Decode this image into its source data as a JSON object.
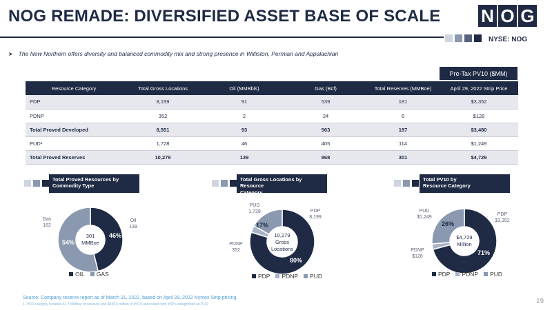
{
  "header": {
    "title": "NOG REMADE: DIVERSIFIED ASSET BASE OF SCALE",
    "logo_letters": [
      "N",
      "O",
      "G"
    ],
    "ticker": "NYSE: NOG"
  },
  "bullet": "The New Northern offers diversity and balanced commodity mix and strong presence in Williston, Permian and Appalachian",
  "pv_header": "Pre-Tax PV10 ($MM)",
  "table": {
    "headers": [
      "Resource Category",
      "Total Gross Locations",
      "Oil (MMBbls)",
      "Gas (Bcf)",
      "Total Reserves (MMBoe)",
      "April 29, 2022 Strip Price"
    ],
    "rows": [
      [
        "PDP",
        "8,199",
        "91",
        "539",
        "181",
        "$3,352"
      ],
      [
        "PDNP",
        "352",
        "2",
        "24",
        "6",
        "$128"
      ],
      [
        "Total Proved Developed",
        "8,551",
        "93",
        "563",
        "187",
        "$3,480"
      ],
      [
        "PUD¹",
        "1,728",
        "46",
        "405",
        "114",
        "$1,249"
      ],
      [
        "Total Proved Reserves",
        "10,279",
        "139",
        "968",
        "301",
        "$4,729"
      ]
    ]
  },
  "colors": {
    "navy": "#1f2a44",
    "slate": "#8a98b0",
    "light": "#a7b3c8",
    "pale": "#cfd5df",
    "source": "#4a9dd8"
  },
  "chart_data": [
    {
      "type": "pie",
      "title_line1": "Total Proved Resources by",
      "title_line2": "Commodity Type",
      "center": [
        "301",
        "MMBoe"
      ],
      "slices": [
        {
          "label": "Oil",
          "value": 139,
          "value_text": "139",
          "pct": "46%"
        },
        {
          "label": "Gas",
          "value": 162,
          "value_text": "162",
          "pct": "54%"
        }
      ],
      "legend": [
        "OIL",
        "GAS"
      ]
    },
    {
      "type": "pie",
      "title_line1": "Total Gross Locations by Resource",
      "title_line2": "Category",
      "center": [
        "10,279",
        "Gross",
        "Locations"
      ],
      "slices": [
        {
          "label": "PDP",
          "value": 8199,
          "value_text": "8,199",
          "pct": "80%"
        },
        {
          "label": "PDNP",
          "value": 352,
          "value_text": "352",
          "pct": "3%"
        },
        {
          "label": "PUD",
          "value": 1728,
          "value_text": "1,728",
          "pct": "17%"
        }
      ],
      "legend": [
        "PDP",
        "PDNP",
        "PUD"
      ]
    },
    {
      "type": "pie",
      "title_line1": "Total PV10 by",
      "title_line2": "Resource Category",
      "center": [
        "$4,729",
        "Million"
      ],
      "slices": [
        {
          "label": "PDP",
          "value": 3352,
          "value_text": "$3,352",
          "pct": "71%"
        },
        {
          "label": "PDNP",
          "value": 128,
          "value_text": "$128",
          "pct": "3%"
        },
        {
          "label": "PUD",
          "value": 1249,
          "value_text": "$1,249",
          "pct": "26%"
        }
      ],
      "legend": [
        "PDP",
        "PDNP",
        "PUD"
      ]
    }
  ],
  "footer": {
    "source": "Source: Company reserve report as of March 31, 2022, based on April 29, 2022 Nymex Strip pricing.",
    "footnote": "1. PUD category includes 61.7 MMboe of reserves and $525.6 million of PV10 associated with WIP's categorized as PUD.",
    "page": "19"
  }
}
